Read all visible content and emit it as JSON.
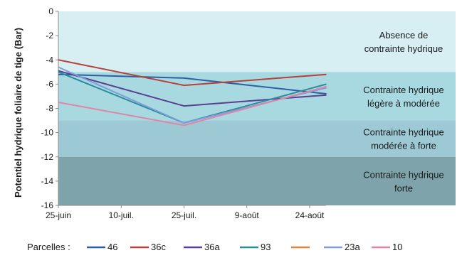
{
  "chart_data": {
    "type": "line",
    "ylabel": "Potentiel hydrique foliaire de tige (Bar)",
    "xlabel": "",
    "ylim": [
      -16,
      0
    ],
    "y_ticks": [
      0,
      -2,
      -4,
      -6,
      -8,
      -10,
      -12,
      -14,
      -16
    ],
    "x_tick_labels": [
      "25-juin",
      "10-juil.",
      "25-juil.",
      "9-août",
      "24-août"
    ],
    "x_dates": [
      "06-25",
      "07-10",
      "07-25",
      "08-09",
      "08-24"
    ],
    "grid": false,
    "legend_title": "Parcelles :",
    "legend_position": "bottom",
    "zones": [
      {
        "label_lines": [
          "Absence de",
          "contrainte hydrique"
        ],
        "from": 0,
        "to": -5,
        "color": "#d7eef2"
      },
      {
        "label_lines": [
          "Contrainte hydrique",
          "légère à modérée"
        ],
        "from": -5,
        "to": -9,
        "color": "#a8d9e1"
      },
      {
        "label_lines": [
          "Contrainte hydrique",
          "modérée à forte"
        ],
        "from": -9,
        "to": -12,
        "color": "#9cc9d4"
      },
      {
        "label_lines": [
          "Contrainte hydrique",
          "forte"
        ],
        "from": -12,
        "to": -16,
        "color": "#7ea3ab"
      }
    ],
    "series": [
      {
        "name": "46",
        "color": "#2e5fa3",
        "x": [
          "06-25",
          "07-25",
          "08-28"
        ],
        "values": [
          -5.2,
          -5.5,
          -6.8
        ]
      },
      {
        "name": "36c",
        "color": "#b5413a",
        "x": [
          "06-25",
          "07-25",
          "08-28"
        ],
        "values": [
          -4.0,
          -6.1,
          -5.2
        ]
      },
      {
        "name": "36a",
        "color": "#5b3f91",
        "x": [
          "06-25",
          "07-25",
          "08-28"
        ],
        "values": [
          -4.9,
          -7.8,
          -6.9
        ]
      },
      {
        "name": "93",
        "color": "#2c8c9b",
        "x": [
          "06-25",
          "07-25",
          "08-28"
        ],
        "values": [
          -5.0,
          -9.2,
          -6.0
        ]
      },
      {
        "name": "",
        "color": "#e3843a",
        "x": [],
        "values": []
      },
      {
        "name": "23a",
        "color": "#7e9ed8",
        "x": [
          "06-25",
          "07-25",
          "08-28"
        ],
        "values": [
          -4.6,
          -9.2,
          -6.3
        ]
      },
      {
        "name": "10",
        "color": "#df86a8",
        "x": [
          "06-25",
          "07-25",
          "08-28"
        ],
        "values": [
          -7.5,
          -9.4,
          -6.2
        ]
      }
    ]
  }
}
